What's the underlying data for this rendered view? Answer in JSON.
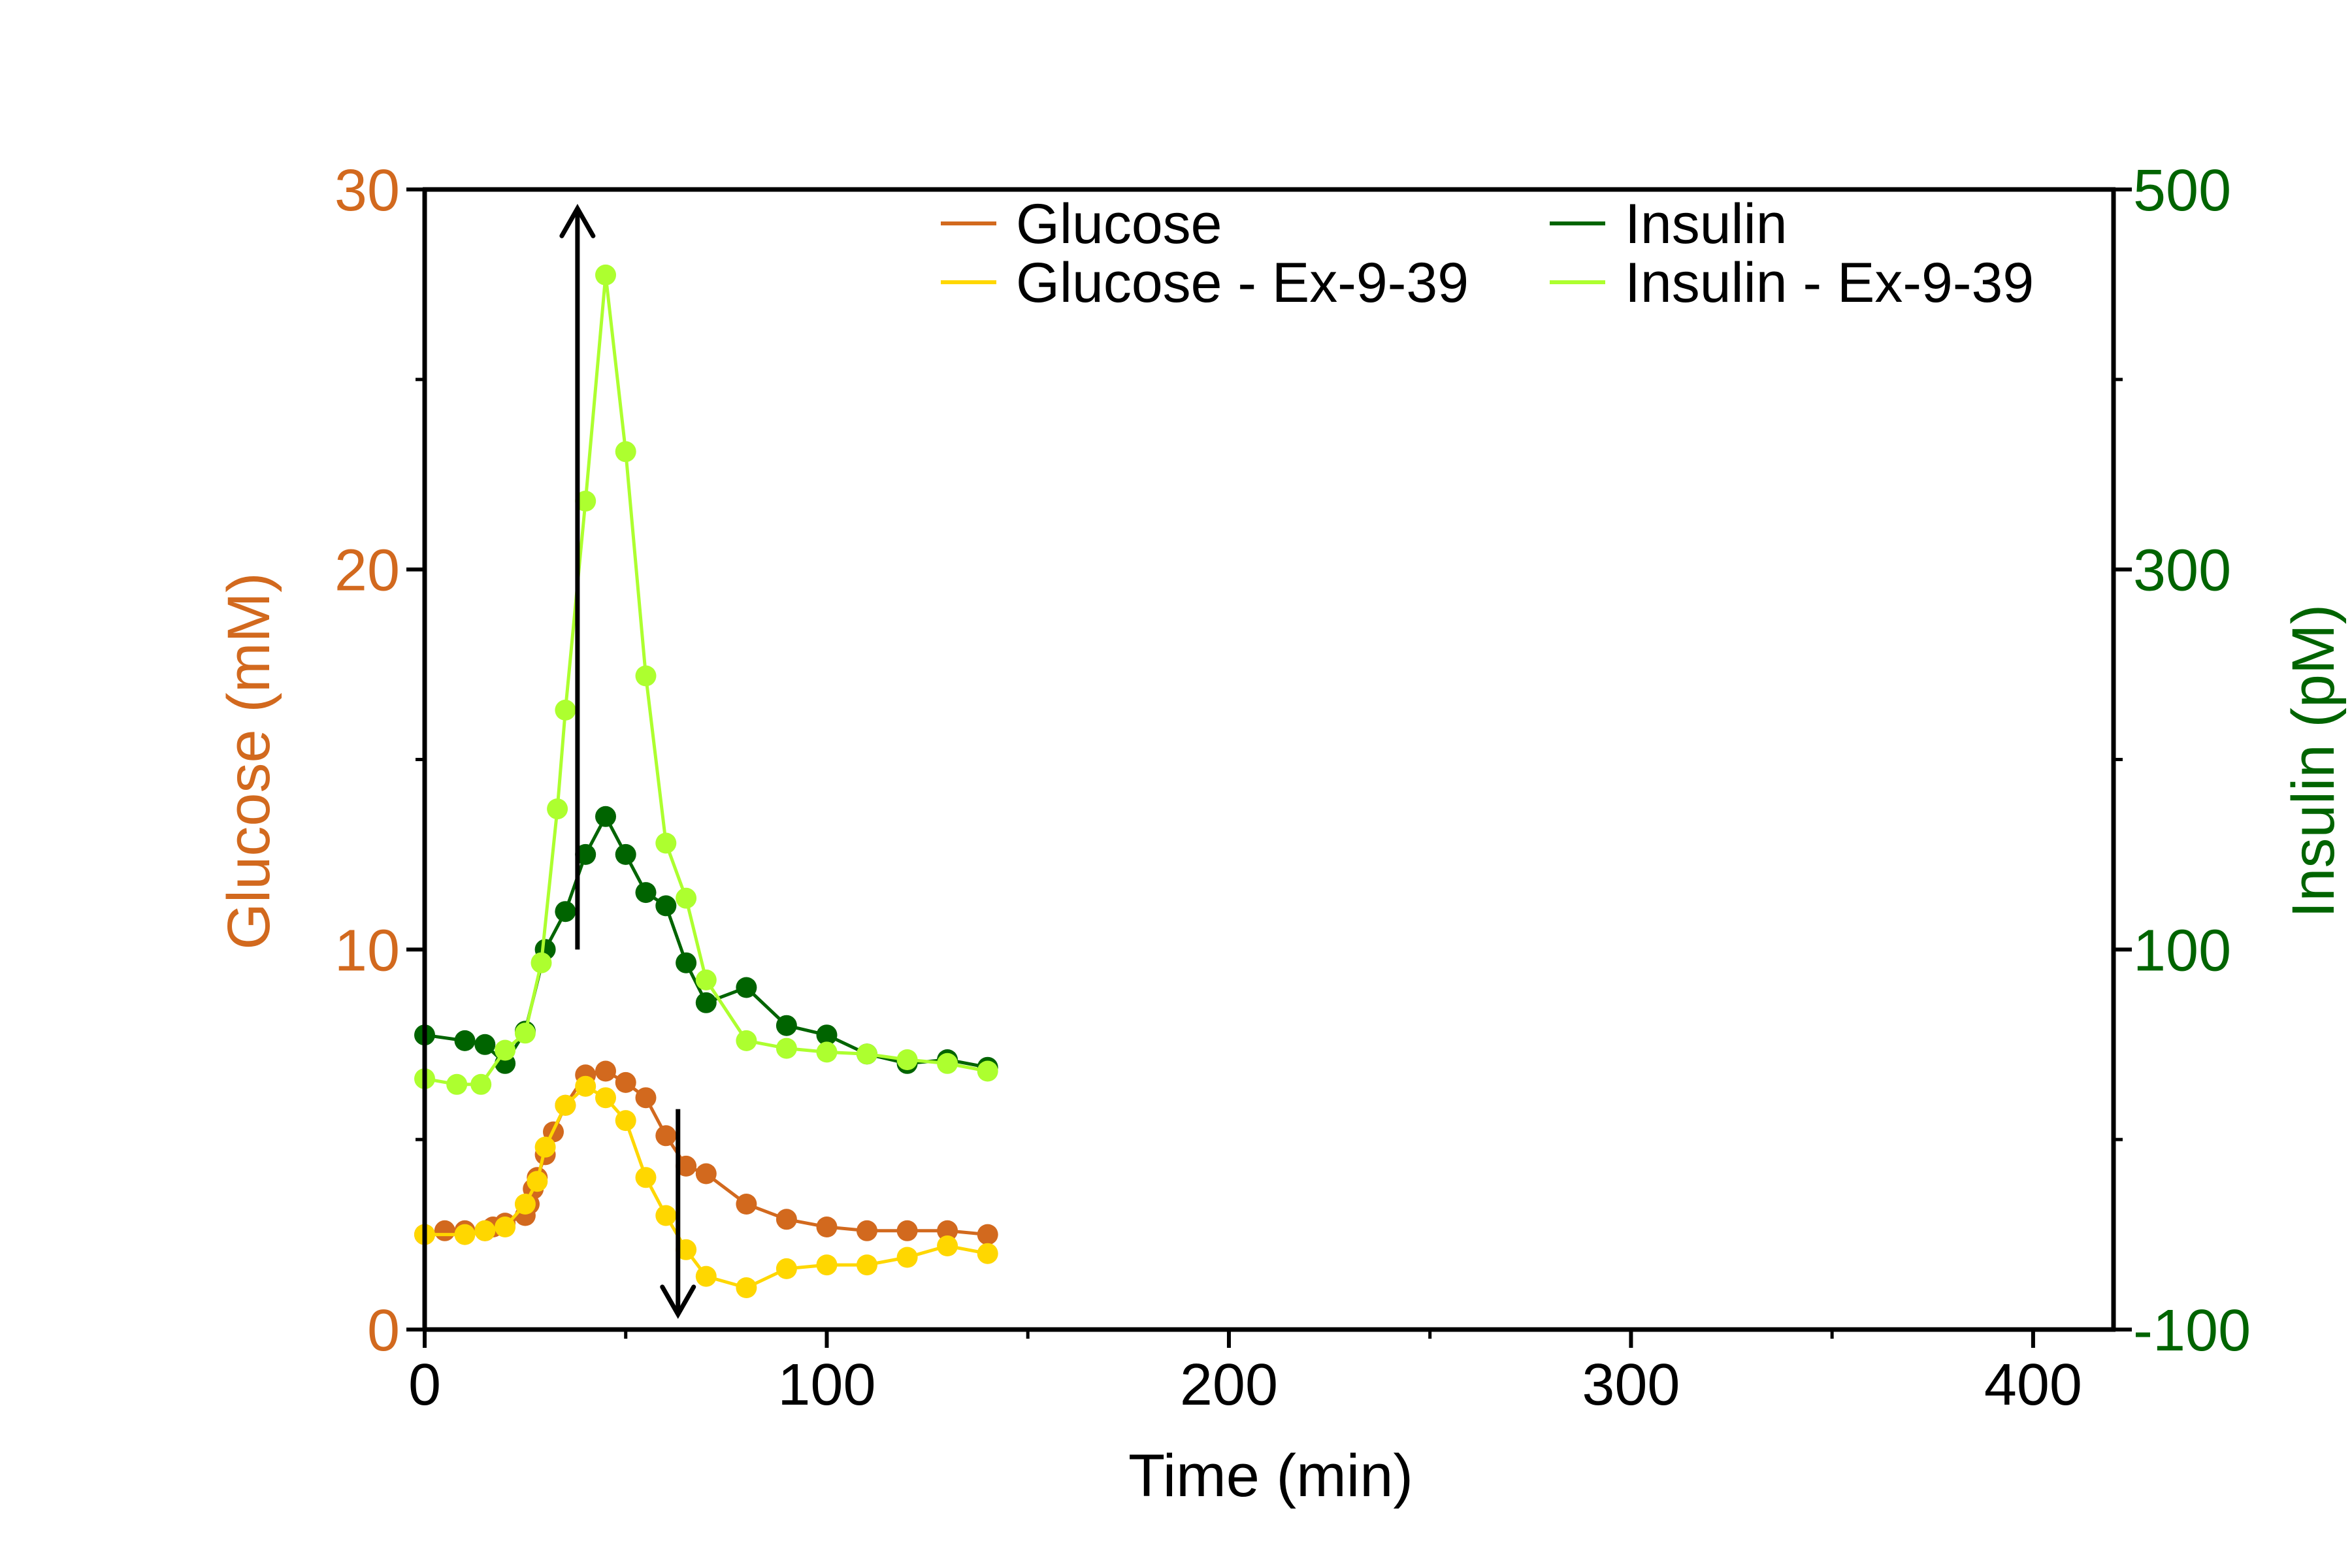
{
  "chart_data": {
    "type": "line",
    "xlabel": "Time (min)",
    "ylabel_left": "Glucose (mM)",
    "ylabel_right": "Insulin (pM)",
    "xlim": [
      0,
      420
    ],
    "ylim_left": [
      0,
      30
    ],
    "ylim_right": [
      -100,
      500
    ],
    "x_ticks": [
      0,
      100,
      200,
      300,
      400
    ],
    "y_ticks_left": [
      0,
      10,
      20,
      30
    ],
    "y_ticks_right": [
      -100,
      100,
      300,
      500
    ],
    "grid": false,
    "legend_position": "top",
    "colors": {
      "left_axis": "#d2691e",
      "right_axis": "#006400"
    },
    "series": [
      {
        "name": "Glucose",
        "axis": "left",
        "color": "#d2691e",
        "x": [
          0,
          5,
          10,
          15,
          17,
          20,
          25,
          26,
          27,
          28,
          30,
          32,
          35,
          40,
          45,
          50,
          55,
          60,
          65,
          70,
          80,
          90,
          100,
          110,
          120,
          130,
          140
        ],
        "y": [
          2.5,
          2.6,
          2.6,
          2.6,
          2.7,
          2.8,
          3.0,
          3.3,
          3.7,
          4.0,
          4.6,
          5.2,
          5.9,
          6.7,
          6.8,
          6.5,
          6.1,
          5.1,
          4.3,
          4.1,
          3.3,
          2.9,
          2.7,
          2.6,
          2.6,
          2.6,
          2.5
        ]
      },
      {
        "name": "Glucose - Ex-9-39",
        "axis": "left",
        "color": "#ffd700",
        "x": [
          0,
          10,
          15,
          20,
          25,
          28,
          30,
          35,
          40,
          45,
          50,
          55,
          60,
          65,
          70,
          80,
          90,
          100,
          110,
          120,
          130,
          140
        ],
        "y": [
          2.5,
          2.5,
          2.6,
          2.7,
          3.3,
          3.9,
          4.8,
          5.9,
          6.4,
          6.1,
          5.5,
          4.0,
          3.0,
          2.1,
          1.4,
          1.1,
          1.6,
          1.7,
          1.7,
          1.9,
          2.2,
          2.0
        ]
      },
      {
        "name": "Insulin",
        "axis": "right",
        "color": "#006400",
        "x": [
          0,
          10,
          15,
          20,
          25,
          30,
          35,
          40,
          45,
          50,
          55,
          60,
          65,
          70,
          80,
          90,
          100,
          110,
          120,
          130,
          140
        ],
        "y": [
          55,
          52,
          50,
          40,
          57,
          100,
          120,
          150,
          170,
          150,
          130,
          123,
          93,
          72,
          80,
          60,
          55,
          45,
          40,
          42,
          38
        ]
      },
      {
        "name": "Insulin - Ex-9-39",
        "axis": "right",
        "color": "#adff2f",
        "x": [
          0,
          8,
          14,
          20,
          25,
          29,
          33,
          35,
          40,
          45,
          50,
          55,
          60,
          65,
          70,
          80,
          90,
          100,
          110,
          120,
          130,
          140
        ],
        "y": [
          32,
          29,
          29,
          47,
          56,
          93,
          174,
          226,
          336,
          455,
          362,
          244,
          156,
          127,
          84,
          52,
          48,
          46,
          45,
          42,
          40,
          36
        ]
      }
    ],
    "annotations": [
      {
        "type": "arrow",
        "direction": "up",
        "x": 38,
        "from": 10,
        "to": 29.5,
        "axis": "left"
      },
      {
        "type": "arrow",
        "direction": "down",
        "x": 63,
        "from": 5.8,
        "to": 0.4,
        "axis": "left"
      }
    ]
  }
}
